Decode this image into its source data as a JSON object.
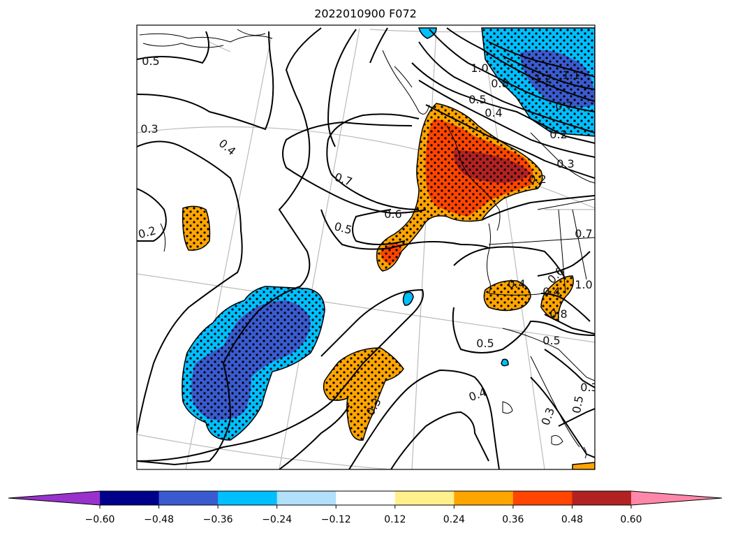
{
  "title": "2022010900 F072",
  "colorbar": {
    "under_color": "#9932cc",
    "over_color": "#ff88aa",
    "bins": [
      {
        "lo": -0.6,
        "hi": -0.48,
        "color": "#00008b"
      },
      {
        "lo": -0.48,
        "hi": -0.36,
        "color": "#3a5bcf"
      },
      {
        "lo": -0.36,
        "hi": -0.24,
        "color": "#00bfff"
      },
      {
        "lo": -0.24,
        "hi": -0.12,
        "color": "#b0e0fa"
      },
      {
        "lo": -0.12,
        "hi": 0.12,
        "color": "#ffffff"
      },
      {
        "lo": 0.12,
        "hi": 0.24,
        "color": "#fff08c"
      },
      {
        "lo": 0.24,
        "hi": 0.36,
        "color": "#ffa500"
      },
      {
        "lo": 0.36,
        "hi": 0.48,
        "color": "#ff4500"
      },
      {
        "lo": 0.48,
        "hi": 0.6,
        "color": "#b22222"
      }
    ],
    "tick_labels": [
      "−0.60",
      "−0.48",
      "−0.36",
      "−0.24",
      "−0.12",
      "0.12",
      "0.24",
      "0.36",
      "0.48",
      "0.60"
    ]
  },
  "contour_labels": [
    "0.5",
    "0.3",
    "0.4",
    "0.2",
    "0.7",
    "0.6",
    "0.5",
    "1.0",
    "0.8",
    "0.5",
    "0.4",
    "1.2",
    "1.1",
    "0.7",
    "0.2",
    "0.3",
    "0.2",
    "0.5",
    "0.4",
    "0.3",
    "0.5",
    "0.3",
    "0.6",
    "1.0",
    "0.8",
    "0.7",
    "0.4",
    "0.5",
    "0.3",
    "0.4"
  ],
  "legend_colors": {
    "positive_orange": "#ffa500",
    "positive_red": "#ff4500",
    "positive_darkred": "#b22222",
    "negative_cyan": "#00bfff",
    "negative_blue": "#3a5bcf"
  }
}
